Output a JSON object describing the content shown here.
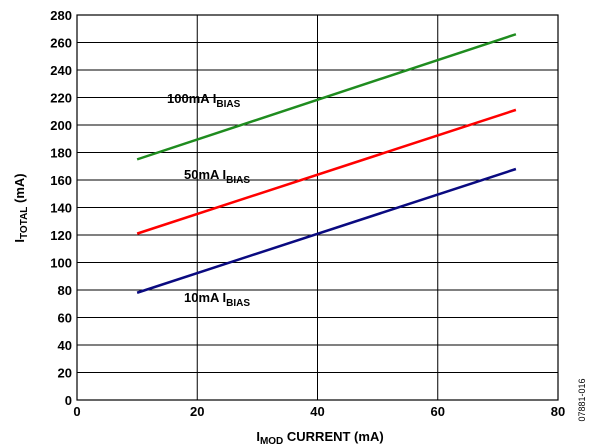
{
  "chart_data": {
    "type": "line",
    "xlabel": {
      "main": "I",
      "sub": "MOD",
      "rest": " CURRENT (mA)"
    },
    "ylabel": {
      "main": "I",
      "sub": "TOTAL",
      "rest": " (mA)"
    },
    "xlim": [
      0,
      80
    ],
    "ylim": [
      0,
      280
    ],
    "xticks": [
      0,
      20,
      40,
      60,
      80
    ],
    "yticks": [
      0,
      20,
      40,
      60,
      80,
      100,
      120,
      140,
      160,
      180,
      200,
      220,
      240,
      260,
      280
    ],
    "grid": true,
    "series": [
      {
        "name": "100mA I_BIAS",
        "color": "#1f8c1f",
        "x": [
          10,
          73
        ],
        "y": [
          175,
          266
        ],
        "label": {
          "main": "100mA I",
          "sub": "BIAS"
        }
      },
      {
        "name": "50mA I_BIAS",
        "color": "#ff0000",
        "x": [
          10,
          73
        ],
        "y": [
          121,
          211
        ],
        "label": {
          "main": "50mA I",
          "sub": "BIAS"
        }
      },
      {
        "name": "10mA I_BIAS",
        "color": "#0a0a80",
        "x": [
          10,
          73
        ],
        "y": [
          78,
          168
        ],
        "label": {
          "main": "10mA I",
          "sub": "BIAS"
        }
      }
    ]
  },
  "figure_code": "07881-016"
}
